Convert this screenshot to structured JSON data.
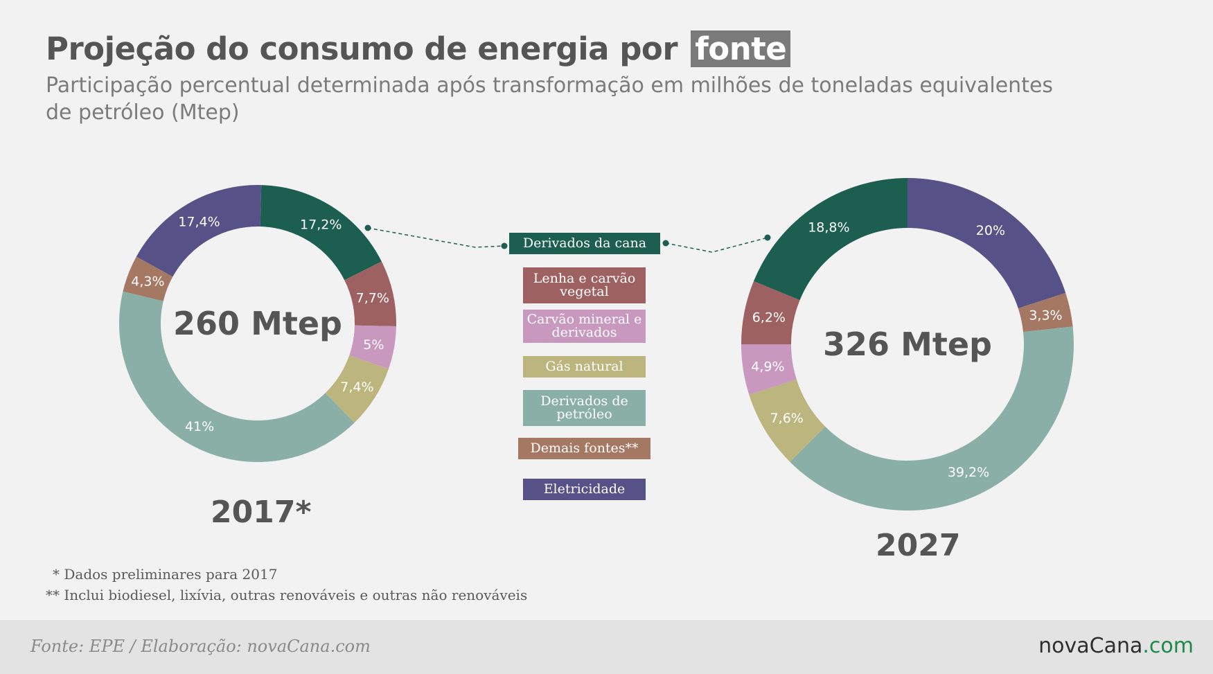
{
  "header": {
    "title_main": "Projeção do consumo de energia por",
    "title_highlight": "fonte",
    "subtitle": "Participação percentual determinada após transformação em milhões de toneladas equivalentes de petróleo (Mtep)"
  },
  "legend": [
    {
      "label": "Derivados da cana",
      "color": "#1c5e50"
    },
    {
      "label": "Lenha e carvão vegetal",
      "color": "#9e6161"
    },
    {
      "label": "Carvão mineral e derivados",
      "color": "#c898bf"
    },
    {
      "label": "Gás natural",
      "color": "#bdb57e"
    },
    {
      "label": "Derivados de petróleo",
      "color": "#8aafa7"
    },
    {
      "label": "Demais fontes**",
      "color": "#a47862"
    },
    {
      "label": "Eletricidade",
      "color": "#565186"
    }
  ],
  "chart_data": [
    {
      "type": "pie",
      "year_label": "2017*",
      "center_label": "260 Mtep",
      "slices": [
        {
          "category": "Derivados da cana",
          "value": 17.2,
          "label": "17,2%"
        },
        {
          "category": "Lenha e carvão vegetal",
          "value": 7.7,
          "label": "7,7%"
        },
        {
          "category": "Carvão mineral e derivados",
          "value": 5,
          "label": "5%"
        },
        {
          "category": "Gás natural",
          "value": 7.4,
          "label": "7,4%"
        },
        {
          "category": "Derivados de petróleo",
          "value": 41,
          "label": "41%"
        },
        {
          "category": "Demais fontes**",
          "value": 4.3,
          "label": "4,3%"
        },
        {
          "category": "Eletricidade",
          "value": 17.4,
          "label": "17,4%"
        }
      ]
    },
    {
      "type": "pie",
      "year_label": "2027",
      "center_label": "326 Mtep",
      "slices": [
        {
          "category": "Eletricidade",
          "value": 20,
          "label": "20%"
        },
        {
          "category": "Demais fontes**",
          "value": 3.3,
          "label": "3,3%"
        },
        {
          "category": "Derivados de petróleo",
          "value": 39.2,
          "label": "39,2%"
        },
        {
          "category": "Gás natural",
          "value": 7.6,
          "label": "7,6%"
        },
        {
          "category": "Carvão mineral e derivados",
          "value": 4.9,
          "label": "4,9%"
        },
        {
          "category": "Lenha e carvão vegetal",
          "value": 6.2,
          "label": "6,2%"
        },
        {
          "category": "Derivados da cana",
          "value": 18.8,
          "label": "18,8%"
        }
      ]
    }
  ],
  "footnotes": [
    "* Dados preliminares para 2017",
    "** Inclui biodiesel, lixívia, outras renováveis e outras não renováveis"
  ],
  "footer": {
    "source": "Fonte: EPE / Elaboração: novaCana.com",
    "brand_main": "novaCana",
    "brand_dot": ".com"
  }
}
